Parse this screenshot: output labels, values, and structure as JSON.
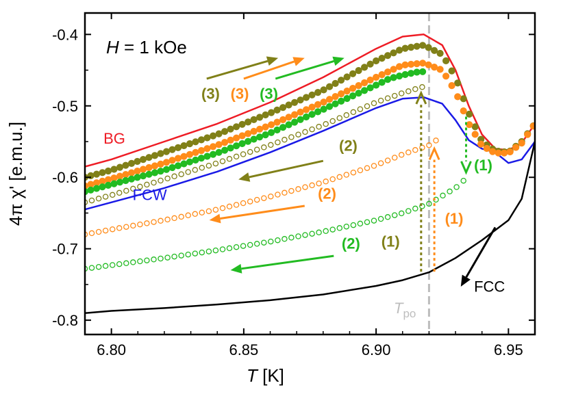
{
  "chart_data": {
    "type": "line",
    "field_label": {
      "italic": "H",
      "rest": " = 1 kOe"
    },
    "xlabel": {
      "italic": "T",
      "rest": " [K]"
    },
    "ylabel": "4π χ' [e.m.u.]",
    "xlim": [
      6.79,
      6.96
    ],
    "ylim": [
      -0.82,
      -0.37
    ],
    "xticks": [
      6.8,
      6.85,
      6.9,
      6.95
    ],
    "xtick_labels": [
      "6.80",
      "6.85",
      "6.90",
      "6.95"
    ],
    "yticks": [
      -0.8,
      -0.7,
      -0.6,
      -0.5,
      -0.4
    ],
    "ytick_labels": [
      "-0.8",
      "-0.7",
      "-0.6",
      "-0.5",
      "-0.4"
    ],
    "tpo": {
      "label_italic": "T",
      "label_sub": "po",
      "x": 6.92,
      "color": "#bdbdbd"
    },
    "colors": {
      "BG": "#ee1c25",
      "FCW": "#1a1ae6",
      "FCC": "#000000",
      "olive": "#808018",
      "orange": "#ff8c1a",
      "green": "#22bb22"
    },
    "series": [
      {
        "name": "BG",
        "color": "#ee1c25",
        "style": "line",
        "x": [
          6.79,
          6.8,
          6.82,
          6.84,
          6.86,
          6.88,
          6.9,
          6.91,
          6.918,
          6.925,
          6.93,
          6.935,
          6.94,
          6.945,
          6.95,
          6.955,
          6.96
        ],
        "y": [
          -0.585,
          -0.575,
          -0.55,
          -0.525,
          -0.495,
          -0.46,
          -0.42,
          -0.403,
          -0.4,
          -0.415,
          -0.45,
          -0.5,
          -0.54,
          -0.56,
          -0.562,
          -0.552,
          -0.525
        ]
      },
      {
        "name": "FCW",
        "color": "#1a1ae6",
        "style": "line",
        "x": [
          6.79,
          6.8,
          6.82,
          6.84,
          6.86,
          6.88,
          6.9,
          6.91,
          6.918,
          6.925,
          6.93,
          6.935,
          6.94,
          6.945,
          6.95,
          6.955,
          6.96
        ],
        "y": [
          -0.645,
          -0.635,
          -0.615,
          -0.592,
          -0.565,
          -0.535,
          -0.503,
          -0.49,
          -0.488,
          -0.497,
          -0.52,
          -0.548,
          -0.56,
          -0.565,
          -0.58,
          -0.575,
          -0.55
        ]
      },
      {
        "name": "FCC",
        "color": "#000000",
        "style": "line",
        "x": [
          6.79,
          6.8,
          6.82,
          6.84,
          6.86,
          6.88,
          6.9,
          6.91,
          6.92,
          6.93,
          6.94,
          6.95,
          6.955,
          6.96
        ],
        "y": [
          -0.79,
          -0.787,
          -0.783,
          -0.778,
          -0.772,
          -0.764,
          -0.752,
          -0.744,
          -0.733,
          -0.713,
          -0.688,
          -0.66,
          -0.63,
          -0.55
        ]
      },
      {
        "name": "(3)",
        "color": "#808018",
        "style": "filled",
        "x": [
          6.79,
          6.8,
          6.82,
          6.84,
          6.86,
          6.88,
          6.9,
          6.91,
          6.918,
          6.925,
          6.93,
          6.935,
          6.94,
          6.945,
          6.95,
          6.955,
          6.96
        ],
        "y": [
          -0.6,
          -0.59,
          -0.565,
          -0.54,
          -0.51,
          -0.478,
          -0.437,
          -0.42,
          -0.415,
          -0.428,
          -0.46,
          -0.51,
          -0.55,
          -0.563,
          -0.565,
          -0.55,
          -0.525
        ]
      },
      {
        "name": "(3)",
        "color": "#ff8c1a",
        "style": "filled",
        "x": [
          6.79,
          6.8,
          6.82,
          6.84,
          6.86,
          6.88,
          6.9,
          6.91,
          6.918,
          6.925,
          6.93,
          6.935,
          6.94,
          6.945,
          6.95,
          6.955,
          6.96
        ],
        "y": [
          -0.612,
          -0.602,
          -0.58,
          -0.555,
          -0.527,
          -0.495,
          -0.46,
          -0.443,
          -0.44,
          -0.45,
          -0.48,
          -0.525,
          -0.556,
          -0.566,
          -0.566,
          -0.552,
          -0.525
        ]
      },
      {
        "name": "(3)",
        "color": "#22bb22",
        "style": "filled",
        "x": [
          6.79,
          6.8,
          6.82,
          6.84,
          6.86,
          6.88,
          6.9,
          6.905,
          6.91,
          6.915,
          6.918
        ],
        "y": [
          -0.62,
          -0.61,
          -0.59,
          -0.566,
          -0.538,
          -0.505,
          -0.471,
          -0.462,
          -0.457,
          -0.453,
          -0.452
        ]
      },
      {
        "name": "(2)",
        "color": "#808018",
        "style": "open",
        "x": [
          6.79,
          6.8,
          6.82,
          6.84,
          6.86,
          6.88,
          6.9,
          6.91,
          6.918
        ],
        "y": [
          -0.635,
          -0.625,
          -0.603,
          -0.58,
          -0.555,
          -0.527,
          -0.495,
          -0.482,
          -0.473
        ]
      },
      {
        "name": "(2)",
        "color": "#ff8c1a",
        "style": "open",
        "x": [
          6.79,
          6.8,
          6.82,
          6.84,
          6.86,
          6.88,
          6.9,
          6.91,
          6.92,
          6.924
        ],
        "y": [
          -0.68,
          -0.673,
          -0.66,
          -0.645,
          -0.627,
          -0.607,
          -0.583,
          -0.568,
          -0.555,
          -0.545
        ]
      },
      {
        "name": "(2)",
        "color": "#22bb22",
        "style": "open",
        "x": [
          6.79,
          6.8,
          6.82,
          6.84,
          6.86,
          6.88,
          6.9,
          6.91,
          6.92,
          6.93,
          6.935
        ],
        "y": [
          -0.728,
          -0.723,
          -0.713,
          -0.702,
          -0.69,
          -0.676,
          -0.66,
          -0.65,
          -0.637,
          -0.615,
          -0.598
        ]
      }
    ],
    "annotations": [
      {
        "text": "BG",
        "color": "#ee1c25",
        "x": 6.797,
        "y": -0.553
      },
      {
        "text": "FCW",
        "color": "#1a1ae6",
        "x": 6.808,
        "y": -0.632
      },
      {
        "text": "FCC",
        "color": "#000000",
        "x": 6.937,
        "y": -0.76
      },
      {
        "text": "(3)",
        "color": "#808018",
        "x": 6.834,
        "y": -0.49,
        "bold": true
      },
      {
        "text": "(3)",
        "color": "#ff8c1a",
        "x": 6.845,
        "y": -0.49,
        "bold": true
      },
      {
        "text": "(3)",
        "color": "#22bb22",
        "x": 6.856,
        "y": -0.49,
        "bold": true
      },
      {
        "text": "(2)",
        "color": "#808018",
        "x": 6.886,
        "y": -0.563,
        "bold": true
      },
      {
        "text": "(2)",
        "color": "#ff8c1a",
        "x": 6.878,
        "y": -0.63,
        "bold": true
      },
      {
        "text": "(2)",
        "color": "#22bb22",
        "x": 6.887,
        "y": -0.7,
        "bold": true
      },
      {
        "text": "(1)",
        "color": "#808018",
        "x": 6.902,
        "y": -0.697,
        "bold": true
      },
      {
        "text": "(1)",
        "color": "#ff8c1a",
        "x": 6.926,
        "y": -0.665,
        "bold": true
      },
      {
        "text": "(1)",
        "color": "#22bb22",
        "x": 6.937,
        "y": -0.59,
        "bold": true
      }
    ]
  }
}
